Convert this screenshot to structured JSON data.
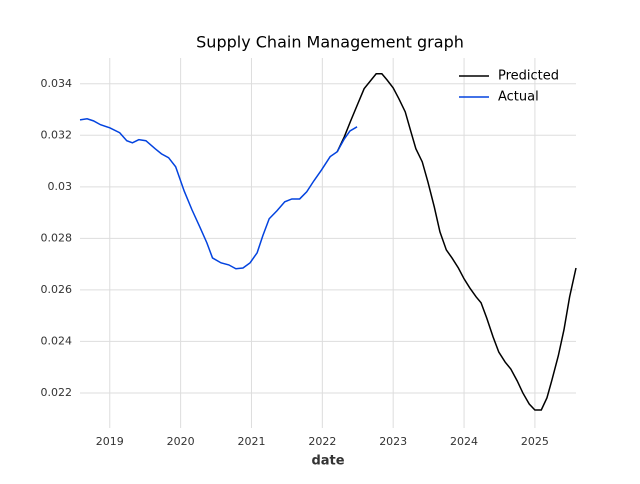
{
  "chart_data": {
    "type": "line",
    "title": "Supply Chain Management graph",
    "x_label": "date",
    "xlim": [
      2018.58,
      2025.58
    ],
    "xticks": [
      2019,
      2020,
      2021,
      2022,
      2023,
      2024,
      2025
    ],
    "ylim": [
      0.02064,
      0.035
    ],
    "yticks": [
      0.022,
      0.024,
      0.026,
      0.028,
      0.03,
      0.032,
      0.034
    ],
    "grid": true,
    "legend": "upper right",
    "series": [
      {
        "name": "Predicted",
        "color": "#000000",
        "x": [
          2022.21,
          2022.31,
          2022.4,
          2022.5,
          2022.59,
          2022.76,
          2022.84,
          2022.91,
          2023.0,
          2023.08,
          2023.17,
          2023.25,
          2023.32,
          2023.41,
          2023.49,
          2023.58,
          2023.66,
          2023.75,
          2023.83,
          2023.92,
          2024.0,
          2024.08,
          2024.17,
          2024.24,
          2024.32,
          2024.41,
          2024.49,
          2024.58,
          2024.66,
          2024.75,
          2024.83,
          2024.92,
          2025.0,
          2025.09,
          2025.17,
          2025.24,
          2025.33,
          2025.41,
          2025.49,
          2025.58
        ],
        "values": [
          0.03136,
          0.03194,
          0.03256,
          0.03322,
          0.03381,
          0.03439,
          0.03439,
          0.03416,
          0.03384,
          0.03342,
          0.03291,
          0.03214,
          0.03148,
          0.03097,
          0.03019,
          0.02922,
          0.02825,
          0.02755,
          0.02724,
          0.02685,
          0.02643,
          0.02608,
          0.02573,
          0.0255,
          0.02491,
          0.02417,
          0.02359,
          0.0232,
          0.02293,
          0.02247,
          0.022,
          0.02157,
          0.02134,
          0.02134,
          0.02181,
          0.0225,
          0.02344,
          0.02445,
          0.02573,
          0.02685
        ]
      },
      {
        "name": "Actual",
        "color": "#0343df",
        "x": [
          2018.58,
          2018.68,
          2018.77,
          2018.87,
          2019.0,
          2019.14,
          2019.24,
          2019.32,
          2019.41,
          2019.51,
          2019.64,
          2019.73,
          2019.83,
          2019.93,
          2020.05,
          2020.16,
          2020.27,
          2020.37,
          2020.45,
          2020.57,
          2020.68,
          2020.78,
          2020.88,
          2020.98,
          2021.08,
          2021.16,
          2021.25,
          2021.36,
          2021.47,
          2021.57,
          2021.68,
          2021.78,
          2021.88,
          2021.99,
          2022.11,
          2022.21,
          2022.31,
          2022.39,
          2022.49
        ],
        "values": [
          0.0326,
          0.03264,
          0.03256,
          0.03241,
          0.03229,
          0.0321,
          0.03179,
          0.03171,
          0.03183,
          0.03179,
          0.03148,
          0.03128,
          0.03113,
          0.03078,
          0.02984,
          0.02911,
          0.02845,
          0.02783,
          0.02724,
          0.02705,
          0.02697,
          0.02682,
          0.02685,
          0.02705,
          0.02744,
          0.0281,
          0.02876,
          0.02907,
          0.02942,
          0.02953,
          0.02953,
          0.02981,
          0.03023,
          0.03066,
          0.03117,
          0.03136,
          0.03186,
          0.03217,
          0.03233
        ]
      }
    ]
  }
}
